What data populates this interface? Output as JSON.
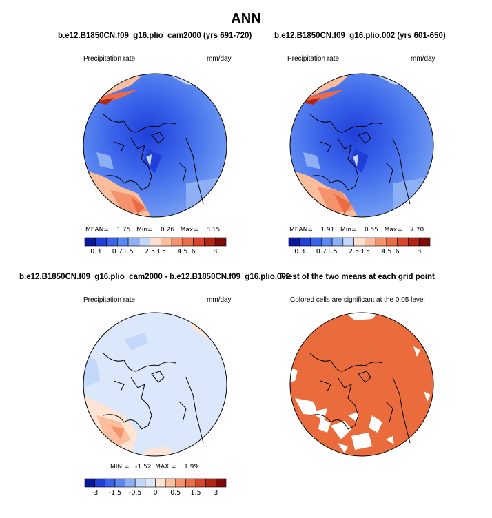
{
  "main_title": "ANN",
  "panels": [
    {
      "title": "b.e12.B1850CN.f09_g16.plio_cam2000 (yrs 691-720)",
      "left_label": "Precipitation rate",
      "right_label": "mm/day",
      "stats": {
        "mean_label": "MEAN=",
        "mean": "1.75",
        "min_label": "Min=",
        "min": "0.26",
        "max_label": "Max=",
        "max": "8.15"
      },
      "colorbar_ticks": [
        "0.3",
        "0.7",
        "1.5",
        "2.5",
        "3.5",
        "4.5",
        "6",
        "8"
      ]
    },
    {
      "title": "b.e12.B1850CN.f09_g16.plio.002 (yrs 601-650)",
      "left_label": "Precipitation rate",
      "right_label": "mm/day",
      "stats": {
        "mean_label": "MEAN=",
        "mean": "1.91",
        "min_label": "Min=",
        "min": "0.55",
        "max_label": "Max=",
        "max": "7.70"
      },
      "colorbar_ticks": [
        "0.3",
        "0.7",
        "1.5",
        "2.5",
        "3.5",
        "4.5",
        "6",
        "8"
      ]
    },
    {
      "title": "b.e12.B1850CN.f09_g16.plio_cam2000 - b.e12.B1850CN.f09_g16.plio.002",
      "left_label": "Precipitation rate",
      "right_label": "mm/day",
      "stats": {
        "min_label": "MIN =",
        "min": "-1.52",
        "max_label": "MAX =",
        "max": "1.99"
      },
      "colorbar_ticks": [
        "-3",
        "-1.5",
        "-0.5",
        "0",
        "0.5",
        "1.5",
        "3"
      ]
    },
    {
      "title": "T-test of the two means at each grid point",
      "subtitle": "Colored cells are significant at the 0.05 level"
    }
  ],
  "colors": {
    "abs_scale": [
      "#08189e",
      "#1f3fd8",
      "#3a63ea",
      "#5a87f0",
      "#8caff5",
      "#c2d7fa",
      "#ffe0cf",
      "#fbbd9c",
      "#f5926c",
      "#eb6b45",
      "#d9452a",
      "#b22414",
      "#7f0a06"
    ],
    "diff_scale": [
      "#08189e",
      "#1f3fd8",
      "#3a63ea",
      "#5a87f0",
      "#8caff5",
      "#c2d7fa",
      "#dbe8fb",
      "#fde4d5",
      "#fbbd9c",
      "#f5926c",
      "#eb6b45",
      "#d9452a",
      "#b22414",
      "#7f0a06"
    ],
    "significant": "#ea6b3c",
    "coastline": "#000000"
  },
  "icons": [
    "polar-stereographic-map"
  ]
}
